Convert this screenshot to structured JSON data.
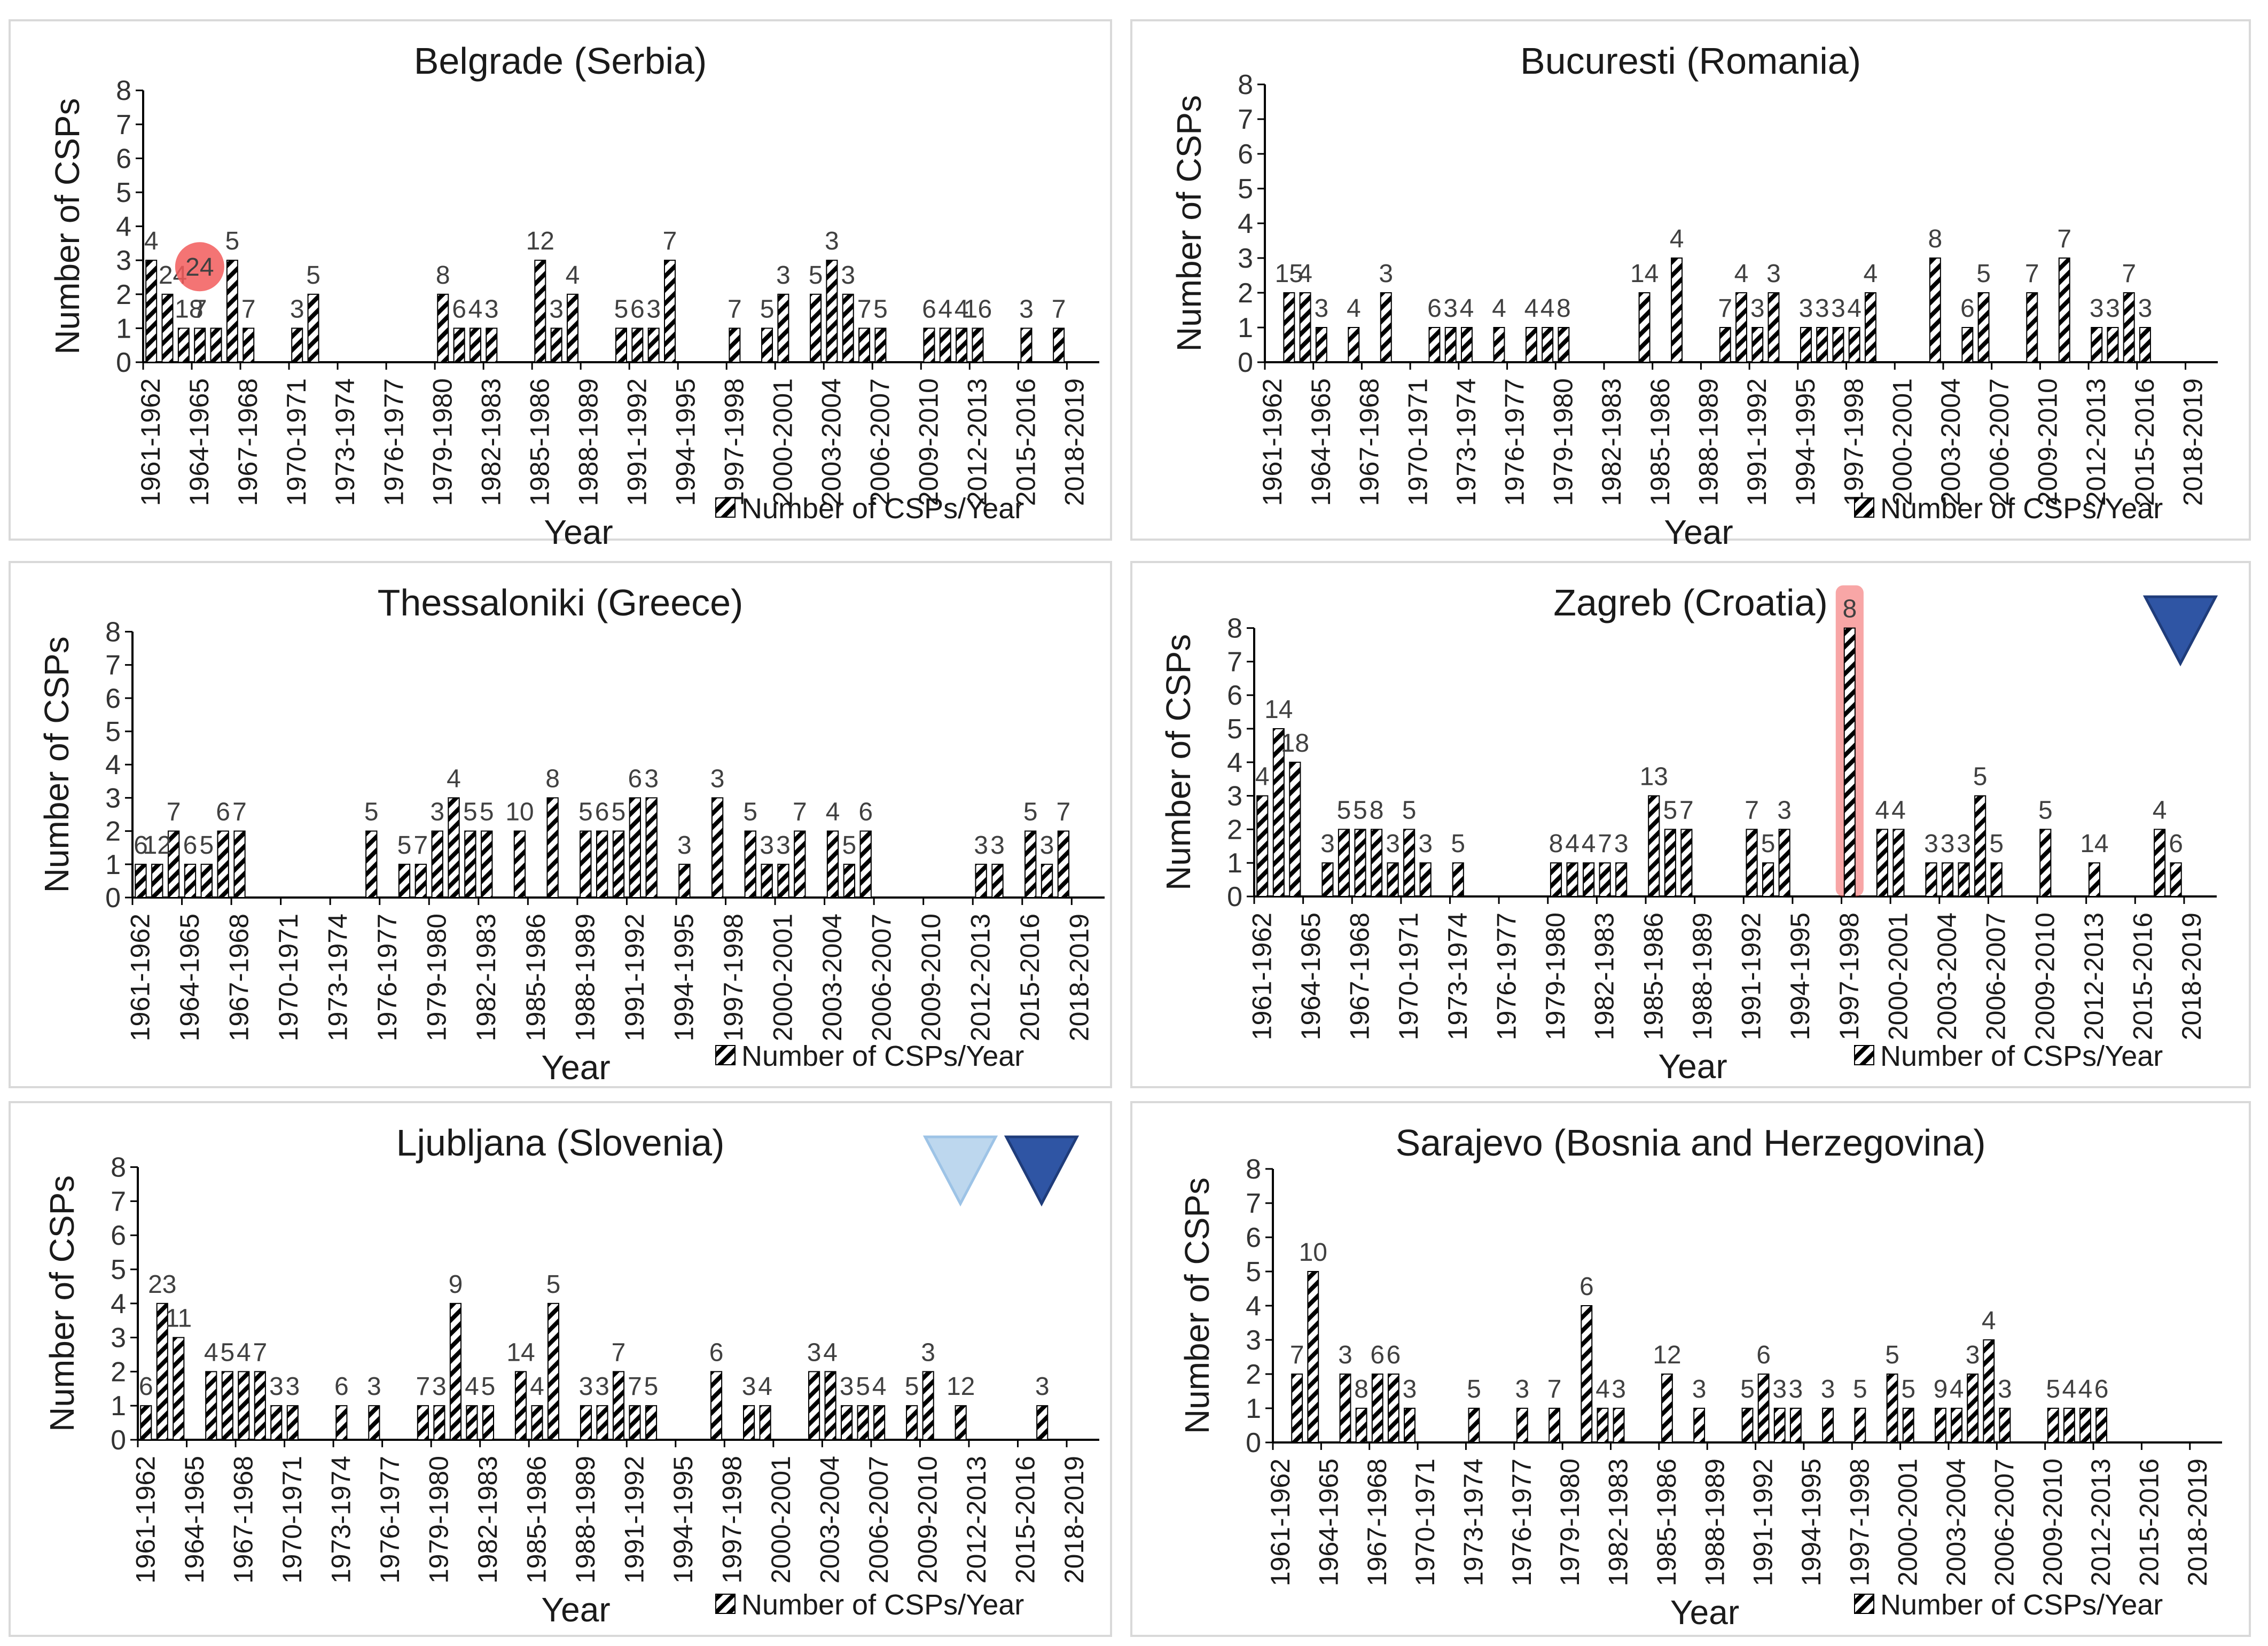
{
  "legend_label": "Number of CSPs/Year",
  "colors": {
    "bar_stroke": "#000000",
    "panel_border": "#d9d9d9",
    "highlight_red": "#f25c5c",
    "triangle_dark": "#2f55a4",
    "triangle_light": "#bdd7ee"
  },
  "chart_data": [
    {
      "type": "bar",
      "title": "Belgrade (Serbia)",
      "xlabel": "Year",
      "ylabel": "Number of CSPs",
      "ylim": [
        0,
        8
      ],
      "yticks": [
        0,
        1,
        2,
        3,
        4,
        5,
        6,
        7,
        8
      ],
      "categories": [
        "1961-1962",
        "1964-1965",
        "1967-1968",
        "1970-1971",
        "1973-1974",
        "1976-1977",
        "1979-1980",
        "1982-1983",
        "1985-1986",
        "1988-1989",
        "1991-1992",
        "1994-1995",
        "1997-1998",
        "2000-2001",
        "2003-2004",
        "2006-2007",
        "2009-2010",
        "2012-2013",
        "2015-2016",
        "2018-2019"
      ],
      "years": [
        1961,
        1962,
        1963,
        1964,
        1965,
        1966,
        1967,
        1970,
        1971,
        1979,
        1980,
        1981,
        1982,
        1985,
        1986,
        1987,
        1990,
        1991,
        1992,
        1993,
        1997,
        1999,
        2000,
        2002,
        2003,
        2004,
        2005,
        2006,
        2009,
        2010,
        2011,
        2012,
        2015,
        2017
      ],
      "values": [
        3,
        2,
        1,
        1,
        1,
        3,
        1,
        1,
        2,
        2,
        1,
        1,
        1,
        3,
        1,
        2,
        1,
        1,
        1,
        3,
        1,
        1,
        2,
        2,
        3,
        2,
        1,
        1,
        1,
        1,
        1,
        1,
        1,
        1
      ],
      "labels": [
        "4",
        "",
        "",
        "7",
        "",
        "5",
        "7",
        "3",
        "5",
        "8",
        "6",
        "4",
        "3",
        "12",
        "3",
        "4",
        "5",
        "6",
        "3",
        "7",
        "7",
        "5",
        "3",
        "5",
        "3",
        "3",
        "7",
        "5",
        "6",
        "4",
        "4",
        "16",
        "3",
        "7"
      ],
      "extra_labels": [
        {
          "year": 1962,
          "text": "24"
        },
        {
          "year": 1963,
          "text": "18"
        }
      ],
      "marker": {
        "type": "circle",
        "year": 1963,
        "text": "24"
      }
    },
    {
      "type": "bar",
      "title": "Bucuresti (Romania)",
      "xlabel": "Year",
      "ylabel": "Number of CSPs",
      "ylim": [
        0,
        8
      ],
      "yticks": [
        0,
        1,
        2,
        3,
        4,
        5,
        6,
        7,
        8
      ],
      "categories": [
        "1961-1962",
        "1964-1965",
        "1967-1968",
        "1970-1971",
        "1973-1974",
        "1976-1977",
        "1979-1980",
        "1982-1983",
        "1985-1986",
        "1988-1989",
        "1991-1992",
        "1994-1995",
        "1997-1998",
        "2000-2001",
        "2003-2004",
        "2006-2007",
        "2009-2010",
        "2012-2013",
        "2015-2016",
        "2018-2019"
      ],
      "years": [
        1962,
        1963,
        1964,
        1966,
        1968,
        1971,
        1972,
        1973,
        1975,
        1977,
        1978,
        1979,
        1984,
        1986,
        1989,
        1990,
        1991,
        1992,
        1994,
        1995,
        1996,
        1997,
        1998,
        2002,
        2004,
        2005,
        2008,
        2010,
        2012,
        2013,
        2014,
        2015
      ],
      "values": [
        2,
        2,
        1,
        1,
        2,
        1,
        1,
        1,
        1,
        1,
        1,
        1,
        2,
        3,
        1,
        2,
        1,
        2,
        1,
        1,
        1,
        1,
        2,
        3,
        1,
        2,
        2,
        3,
        1,
        1,
        2,
        1
      ],
      "labels": [
        "15",
        "4",
        "3",
        "4",
        "3",
        "6",
        "3",
        "4",
        "4",
        "4",
        "4",
        "8",
        "14",
        "4",
        "7",
        "4",
        "3",
        "3",
        "3",
        "3",
        "3",
        "4",
        "4",
        "8",
        "6",
        "5",
        "7",
        "7",
        "3",
        "3",
        "7",
        "3"
      ]
    },
    {
      "type": "bar",
      "title": "Thessaloniki (Greece)",
      "xlabel": "Year",
      "ylabel": "Number of CSPs",
      "ylim": [
        0,
        8
      ],
      "yticks": [
        0,
        1,
        2,
        3,
        4,
        5,
        6,
        7,
        8
      ],
      "categories": [
        "1961-1962",
        "1964-1965",
        "1967-1968",
        "1970-1971",
        "1973-1974",
        "1976-1977",
        "1979-1980",
        "1982-1983",
        "1985-1986",
        "1988-1989",
        "1991-1992",
        "1994-1995",
        "1997-1998",
        "2000-2001",
        "2003-2004",
        "2006-2007",
        "2009-2010",
        "2012-2013",
        "2015-2016",
        "2018-2019"
      ],
      "years": [
        1961,
        1962,
        1963,
        1964,
        1965,
        1966,
        1967,
        1975,
        1977,
        1978,
        1979,
        1980,
        1981,
        1982,
        1984,
        1986,
        1988,
        1989,
        1990,
        1991,
        1992,
        1994,
        1996,
        1998,
        1999,
        2000,
        2001,
        2003,
        2004,
        2005,
        2012,
        2013,
        2015,
        2016,
        2017
      ],
      "values": [
        1,
        1,
        2,
        1,
        1,
        2,
        2,
        2,
        1,
        1,
        2,
        3,
        2,
        2,
        2,
        3,
        2,
        2,
        2,
        3,
        3,
        1,
        3,
        2,
        1,
        1,
        2,
        2,
        1,
        2,
        1,
        1,
        2,
        1,
        2
      ],
      "labels": [
        "6",
        "12",
        "7",
        "6",
        "5",
        "6",
        "7",
        "5",
        "5",
        "7",
        "3",
        "4",
        "5",
        "5",
        "10",
        "8",
        "5",
        "6",
        "5",
        "6",
        "3",
        "3",
        "3",
        "5",
        "3",
        "3",
        "7",
        "4",
        "5",
        "6",
        "3",
        "3",
        "5",
        "3",
        "7"
      ]
    },
    {
      "type": "bar",
      "title": "Zagreb (Croatia)",
      "xlabel": "Year",
      "ylabel": "Number of CSPs",
      "ylim": [
        0,
        8
      ],
      "yticks": [
        0,
        1,
        2,
        3,
        4,
        5,
        6,
        7,
        8
      ],
      "categories": [
        "1961-1962",
        "1964-1965",
        "1967-1968",
        "1970-1971",
        "1973-1974",
        "1976-1977",
        "1979-1980",
        "1982-1983",
        "1985-1986",
        "1988-1989",
        "1991-1992",
        "1994-1995",
        "1997-1998",
        "2000-2001",
        "2003-2004",
        "2006-2007",
        "2009-2010",
        "2012-2013",
        "2015-2016",
        "2018-2019"
      ],
      "years": [
        1961,
        1962,
        1963,
        1965,
        1966,
        1967,
        1968,
        1969,
        1970,
        1971,
        1973,
        1979,
        1980,
        1981,
        1982,
        1983,
        1985,
        1986,
        1987,
        1991,
        1992,
        1993,
        1997,
        1999,
        2000,
        2002,
        2003,
        2004,
        2005,
        2006,
        2009,
        2012,
        2016,
        2017
      ],
      "values": [
        3,
        5,
        4,
        1,
        2,
        2,
        2,
        1,
        2,
        1,
        1,
        1,
        1,
        1,
        1,
        1,
        3,
        2,
        2,
        2,
        1,
        2,
        8,
        2,
        2,
        1,
        1,
        1,
        3,
        1,
        2,
        1,
        2,
        1
      ],
      "labels": [
        "4",
        "14",
        "18",
        "3",
        "5",
        "5",
        "8",
        "3",
        "5",
        "3",
        "5",
        "8",
        "4",
        "4",
        "7",
        "3",
        "13",
        "5",
        "7",
        "7",
        "5",
        "3",
        "8",
        "4",
        "4",
        "3",
        "3",
        "3",
        "5",
        "5",
        "5",
        "14",
        "4",
        "6"
      ],
      "highlight_year": 1997,
      "triangles": [
        "dark"
      ]
    },
    {
      "type": "bar",
      "title": "Ljubljana (Slovenia)",
      "xlabel": "Year",
      "ylabel": "Number of CSPs",
      "ylim": [
        0,
        8
      ],
      "yticks": [
        0,
        1,
        2,
        3,
        4,
        5,
        6,
        7,
        8
      ],
      "categories": [
        "1961-1962",
        "1964-1965",
        "1967-1968",
        "1970-1971",
        "1973-1974",
        "1976-1977",
        "1979-1980",
        "1982-1983",
        "1985-1986",
        "1988-1989",
        "1991-1992",
        "1994-1995",
        "1997-1998",
        "2000-2001",
        "2003-2004",
        "2006-2007",
        "2009-2010",
        "2012-2013",
        "2015-2016",
        "2018-2019"
      ],
      "years": [
        1961,
        1962,
        1963,
        1965,
        1966,
        1967,
        1968,
        1969,
        1970,
        1973,
        1975,
        1978,
        1979,
        1980,
        1981,
        1982,
        1984,
        1985,
        1986,
        1988,
        1989,
        1990,
        1991,
        1992,
        1996,
        1998,
        1999,
        2002,
        2003,
        2004,
        2005,
        2006,
        2008,
        2009,
        2011,
        2016
      ],
      "values": [
        1,
        4,
        3,
        2,
        2,
        2,
        2,
        1,
        1,
        1,
        1,
        1,
        1,
        4,
        1,
        1,
        2,
        1,
        4,
        1,
        1,
        2,
        1,
        1,
        2,
        1,
        1,
        2,
        2,
        1,
        1,
        1,
        1,
        2,
        1,
        1
      ],
      "labels": [
        "6",
        "23",
        "11",
        "4",
        "5",
        "4",
        "7",
        "3",
        "3",
        "6",
        "3",
        "7",
        "3",
        "9",
        "4",
        "5",
        "14",
        "4",
        "5",
        "3",
        "3",
        "7",
        "7",
        "5",
        "6",
        "3",
        "4",
        "3",
        "4",
        "3",
        "5",
        "4",
        "5",
        "3",
        "12",
        "3"
      ],
      "triangles": [
        "light",
        "dark"
      ]
    },
    {
      "type": "bar",
      "title": "Sarajevo (Bosnia and Herzegovina)",
      "xlabel": "Year",
      "ylabel": "Number of CSPs",
      "ylim": [
        0,
        8
      ],
      "yticks": [
        0,
        1,
        2,
        3,
        4,
        5,
        6,
        7,
        8
      ],
      "categories": [
        "1961-1962",
        "1964-1965",
        "1967-1968",
        "1970-1971",
        "1973-1974",
        "1976-1977",
        "1979-1980",
        "1982-1983",
        "1985-1986",
        "1988-1989",
        "1991-1992",
        "1994-1995",
        "1997-1998",
        "2000-2001",
        "2003-2004",
        "2006-2007",
        "2009-2010",
        "2012-2013",
        "2015-2016",
        "2018-2019"
      ],
      "years": [
        1962,
        1963,
        1965,
        1966,
        1967,
        1968,
        1969,
        1973,
        1976,
        1978,
        1980,
        1981,
        1982,
        1985,
        1987,
        1990,
        1991,
        1992,
        1993,
        1995,
        1997,
        1999,
        2000,
        2002,
        2003,
        2004,
        2005,
        2006,
        2009,
        2010,
        2011,
        2012
      ],
      "values": [
        2,
        5,
        2,
        1,
        2,
        2,
        1,
        1,
        1,
        1,
        4,
        1,
        1,
        2,
        1,
        1,
        2,
        1,
        1,
        1,
        1,
        2,
        1,
        1,
        1,
        2,
        3,
        1,
        1,
        1,
        1,
        1
      ],
      "labels": [
        "7",
        "10",
        "3",
        "8",
        "6",
        "6",
        "3",
        "5",
        "3",
        "7",
        "6",
        "4",
        "3",
        "12",
        "3",
        "5",
        "6",
        "3",
        "3",
        "3",
        "5",
        "5",
        "5",
        "9",
        "4",
        "3",
        "4",
        "3",
        "5",
        "4",
        "4",
        "6"
      ]
    }
  ]
}
